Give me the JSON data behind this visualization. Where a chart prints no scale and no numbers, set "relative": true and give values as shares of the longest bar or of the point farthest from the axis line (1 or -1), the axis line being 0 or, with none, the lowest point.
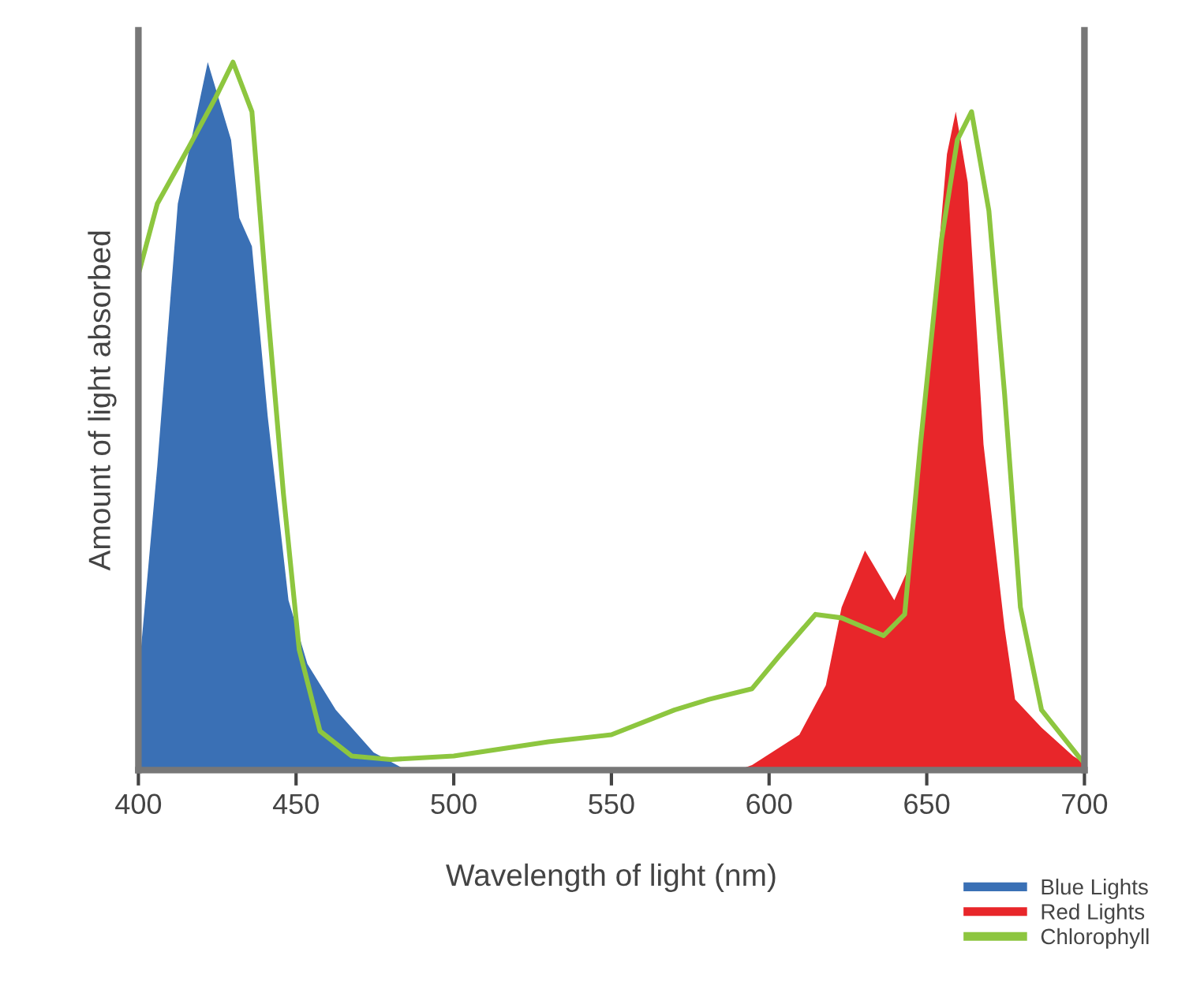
{
  "chart_data": {
    "type": "area",
    "relative": true,
    "xlabel": "Wavelength of light (nm)",
    "ylabel": "Amount of light absorbed",
    "xlim": [
      400,
      700
    ],
    "xticks": [
      400,
      450,
      500,
      550,
      600,
      650,
      700
    ],
    "grid": false,
    "legend": "bottom right",
    "tick_labels": "x",
    "series": [
      {
        "name": "Blue Lights",
        "color": "#3a70b5",
        "x": [
          400,
          406,
          412.5,
          422,
          429.4,
          432,
          436,
          441,
          447.6,
          453.6,
          462.6,
          474.6,
          485
        ],
        "values": [
          0.13,
          0.43,
          0.8,
          1,
          0.89,
          0.78,
          0.74,
          0.5,
          0.24,
          0.15,
          0.085,
          0.025,
          0
        ]
      },
      {
        "name": "Red Lights",
        "color": "#e8262a",
        "x": [
          590,
          594.6,
          609.6,
          618,
          623,
          630.4,
          639.7,
          644.7,
          651.4,
          656.4,
          659.2,
          663,
          668,
          674.7,
          678,
          686.4,
          696.4,
          700
        ],
        "values": [
          0,
          0.007,
          0.05,
          0.12,
          0.23,
          0.31,
          0.24,
          0.29,
          0.61,
          0.87,
          0.93,
          0.83,
          0.46,
          0.2,
          0.1,
          0.06,
          0.02,
          0.01
        ]
      },
      {
        "name": "Chlorophyll",
        "type": "line",
        "color": "#8dc63f",
        "x": [
          400,
          406,
          416,
          424.5,
          430,
          436,
          441,
          446,
          451,
          457.6,
          467.6,
          480,
          500,
          530,
          550,
          570,
          581,
          594.6,
          603,
          614.7,
          623,
          636.3,
          643,
          648,
          654.7,
          659.7,
          664.2,
          669.7,
          674.7,
          679.7,
          686.4,
          698,
          700
        ],
        "values": [
          0.7,
          0.8,
          0.88,
          0.95,
          1,
          0.93,
          0.65,
          0.39,
          0.17,
          0.055,
          0.02,
          0.015,
          0.02,
          0.04,
          0.05,
          0.085,
          0.1,
          0.115,
          0.16,
          0.22,
          0.215,
          0.19,
          0.22,
          0.46,
          0.75,
          0.89,
          0.93,
          0.79,
          0.53,
          0.23,
          0.085,
          0.02,
          0.01
        ]
      }
    ]
  }
}
